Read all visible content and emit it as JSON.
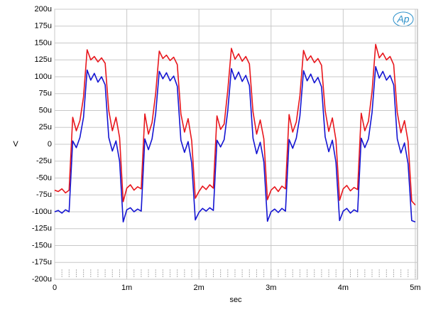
{
  "chart_data": {
    "type": "line",
    "logo": "Ap",
    "xlabel": "sec",
    "ylabel": "V",
    "xlim": [
      0,
      0.00503
    ],
    "ylim": [
      -0.0002,
      0.0002
    ],
    "grid": true,
    "xticks": [
      0,
      {
        "value": 0.001,
        "label": "1m"
      },
      {
        "value": 0.002,
        "label": "2m"
      },
      {
        "value": 0.003,
        "label": "3m"
      },
      {
        "value": 0.004,
        "label": "4m"
      },
      {
        "value": 0.005,
        "label": "5m"
      }
    ],
    "yticks": [
      {
        "value": -0.0002,
        "label": "-200u"
      },
      {
        "value": -0.000175,
        "label": "-175u"
      },
      {
        "value": -0.00015,
        "label": "-150u"
      },
      {
        "value": -0.000125,
        "label": "-125u"
      },
      {
        "value": -0.0001,
        "label": "-100u"
      },
      {
        "value": -7.5e-05,
        "label": "-75u"
      },
      {
        "value": -5e-05,
        "label": "-50u"
      },
      {
        "value": -2.5e-05,
        "label": "-25u"
      },
      0,
      {
        "value": 2.5e-05,
        "label": "25u"
      },
      {
        "value": 5e-05,
        "label": "50u"
      },
      {
        "value": 7.5e-05,
        "label": "75u"
      },
      {
        "value": 0.0001,
        "label": "100u"
      },
      {
        "value": 0.000125,
        "label": "125u"
      },
      {
        "value": 0.00015,
        "label": "150u"
      },
      {
        "value": 0.000175,
        "label": "175u"
      },
      {
        "value": 0.0002,
        "label": "200u"
      }
    ],
    "x": [
      0,
      5e-05,
      0.0001,
      0.00015,
      0.0002,
      0.00025,
      0.0003,
      0.00035,
      0.0004,
      0.00045,
      0.0005,
      0.00055,
      0.0006,
      0.00065,
      0.0007,
      0.00075,
      0.0008,
      0.00085,
      0.0009,
      0.00095,
      0.001,
      0.00105,
      0.0011,
      0.00115,
      0.0012,
      0.00125,
      0.0013,
      0.00135,
      0.0014,
      0.00145,
      0.0015,
      0.00155,
      0.0016,
      0.00165,
      0.0017,
      0.00175,
      0.0018,
      0.00185,
      0.0019,
      0.00195,
      0.002,
      0.00205,
      0.0021,
      0.00215,
      0.0022,
      0.00225,
      0.0023,
      0.00235,
      0.0024,
      0.00245,
      0.0025,
      0.00255,
      0.0026,
      0.00265,
      0.0027,
      0.00275,
      0.0028,
      0.00285,
      0.0029,
      0.00295,
      0.003,
      0.00305,
      0.0031,
      0.00315,
      0.0032,
      0.00325,
      0.0033,
      0.00335,
      0.0034,
      0.00345,
      0.0035,
      0.00355,
      0.0036,
      0.00365,
      0.0037,
      0.00375,
      0.0038,
      0.00385,
      0.0039,
      0.00395,
      0.004,
      0.00405,
      0.0041,
      0.00415,
      0.0042,
      0.00425,
      0.0043,
      0.00435,
      0.0044,
      0.00445,
      0.0045,
      0.00455,
      0.0046,
      0.00465,
      0.0047,
      0.00475,
      0.0048,
      0.00485,
      0.0049,
      0.00495,
      0.005
    ],
    "series": [
      {
        "color": "#e8161c",
        "values": [
          -6.8e-05,
          -7e-05,
          -6.6e-05,
          -7.2e-05,
          -6.8e-05,
          4e-05,
          2e-05,
          3.5e-05,
          7e-05,
          0.00014,
          0.000125,
          0.00013,
          0.000122,
          0.000128,
          0.00012,
          5e-05,
          2e-05,
          4e-05,
          1e-05,
          -8.5e-05,
          -6.5e-05,
          -6e-05,
          -6.8e-05,
          -6.3e-05,
          -6.6e-05,
          4.5e-05,
          1.5e-05,
          3.2e-05,
          7.5e-05,
          0.000138,
          0.000127,
          0.000132,
          0.000124,
          0.000129,
          0.000118,
          4.5e-05,
          1.8e-05,
          3.8e-05,
          5e-06,
          -8e-05,
          -7e-05,
          -6.2e-05,
          -6.7e-05,
          -6e-05,
          -6.5e-05,
          4.2e-05,
          2.2e-05,
          3e-05,
          8e-05,
          0.000142,
          0.000126,
          0.000134,
          0.000123,
          0.00013,
          0.000119,
          4.8e-05,
          1.5e-05,
          3.6e-05,
          8e-06,
          -8.2e-05,
          -6.8e-05,
          -6.3e-05,
          -7e-05,
          -6.2e-05,
          -6.6e-05,
          4.4e-05,
          1.8e-05,
          3.3e-05,
          7.2e-05,
          0.000139,
          0.000124,
          0.000131,
          0.000121,
          0.000127,
          0.000117,
          5e-05,
          1.9e-05,
          3.9e-05,
          6e-06,
          -8.3e-05,
          -6.6e-05,
          -6.1e-05,
          -6.9e-05,
          -6.4e-05,
          -6.7e-05,
          4.6e-05,
          2e-05,
          3.4e-05,
          7.8e-05,
          0.000148,
          0.000128,
          0.000135,
          0.000125,
          0.00013,
          0.000118,
          4.7e-05,
          1.7e-05,
          3.5e-05,
          4e-06,
          -8.4e-05,
          -9e-05
        ]
      },
      {
        "color": "#1414d2",
        "values": [
          -0.0001,
          -9.8e-05,
          -0.000102,
          -9.7e-05,
          -0.0001,
          5e-06,
          -5e-06,
          1e-05,
          4e-05,
          0.00011,
          9.5e-05,
          0.000105,
          9.2e-05,
          0.0001,
          8.8e-05,
          1e-05,
          -1e-05,
          5e-06,
          -2.5e-05,
          -0.000115,
          -9.7e-05,
          -9.4e-05,
          -0.0001,
          -9.6e-05,
          -9.9e-05,
          8e-06,
          -8e-06,
          8e-06,
          4.5e-05,
          0.000108,
          9.7e-05,
          0.000106,
          9.4e-05,
          0.000101,
          8.6e-05,
          6e-06,
          -1.2e-05,
          4e-06,
          -2.8e-05,
          -0.000112,
          -0.000101,
          -9.5e-05,
          -9.9e-05,
          -9.4e-05,
          -9.8e-05,
          6e-06,
          -4e-06,
          7e-06,
          5e-05,
          0.000112,
          9.6e-05,
          0.000107,
          9.3e-05,
          0.000102,
          8.7e-05,
          9e-06,
          -1.4e-05,
          3e-06,
          -2.6e-05,
          -0.000114,
          -0.0001,
          -9.6e-05,
          -0.000101,
          -9.5e-05,
          -9.9e-05,
          7e-06,
          -6e-06,
          9e-06,
          4.2e-05,
          0.000109,
          9.4e-05,
          0.000104,
          9.1e-05,
          9.9e-05,
          8.5e-05,
          1.1e-05,
          -1.1e-05,
          6e-06,
          -2.7e-05,
          -0.000113,
          -9.9e-05,
          -9.5e-05,
          -0.000102,
          -9.7e-05,
          -0.0001,
          9e-06,
          -5e-06,
          8e-06,
          4.7e-05,
          0.000115,
          9.8e-05,
          0.000108,
          9.5e-05,
          0.000102,
          8.8e-05,
          8e-06,
          -1.3e-05,
          2e-06,
          -2.9e-05,
          -0.000113,
          -0.000115
        ]
      }
    ]
  }
}
